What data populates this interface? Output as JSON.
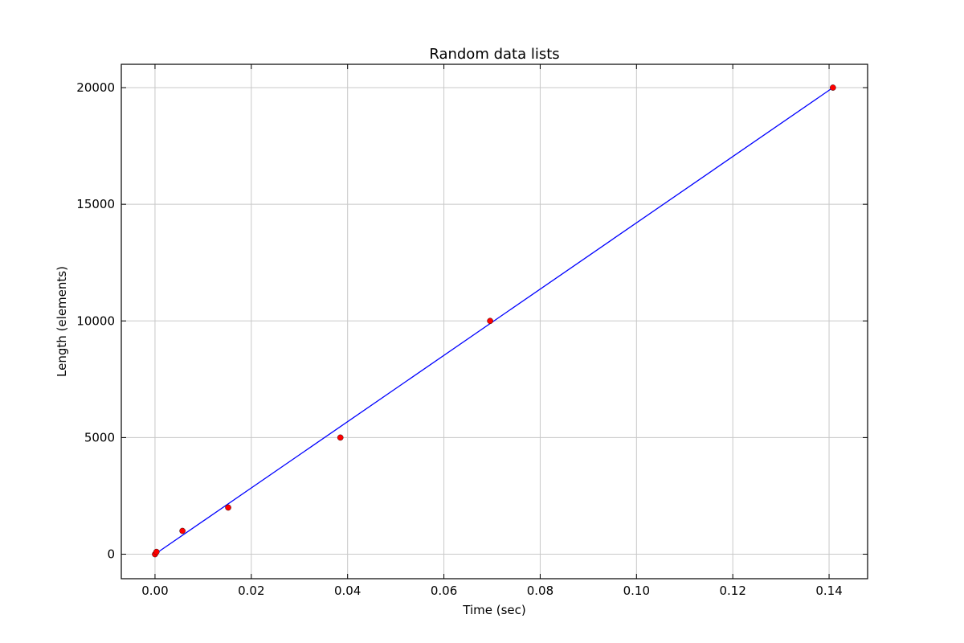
{
  "chart_data": {
    "type": "scatter",
    "title": "Random data lists",
    "xlabel": "Time (sec)",
    "ylabel": "Length (elements)",
    "xlim": [
      -0.007,
      0.148
    ],
    "ylim": [
      -1050,
      21000
    ],
    "xticks": [
      0.0,
      0.02,
      0.04,
      0.06,
      0.08,
      0.1,
      0.12,
      0.14
    ],
    "xtick_labels": [
      "0.00",
      "0.02",
      "0.04",
      "0.06",
      "0.08",
      "0.10",
      "0.12",
      "0.14"
    ],
    "yticks": [
      0,
      5000,
      10000,
      15000,
      20000
    ],
    "ytick_labels": [
      "0",
      "5000",
      "10000",
      "15000",
      "20000"
    ],
    "grid": true,
    "points": {
      "x": [
        0.0,
        0.0003,
        0.0057,
        0.0152,
        0.0385,
        0.0696,
        0.1408
      ],
      "y": [
        0,
        100,
        1000,
        2000,
        5000,
        10000,
        20000
      ],
      "color": "#ff0000"
    },
    "fit_line": {
      "x": [
        0.0,
        0.1408
      ],
      "y": [
        0,
        20000
      ],
      "color": "#0000ff"
    }
  }
}
